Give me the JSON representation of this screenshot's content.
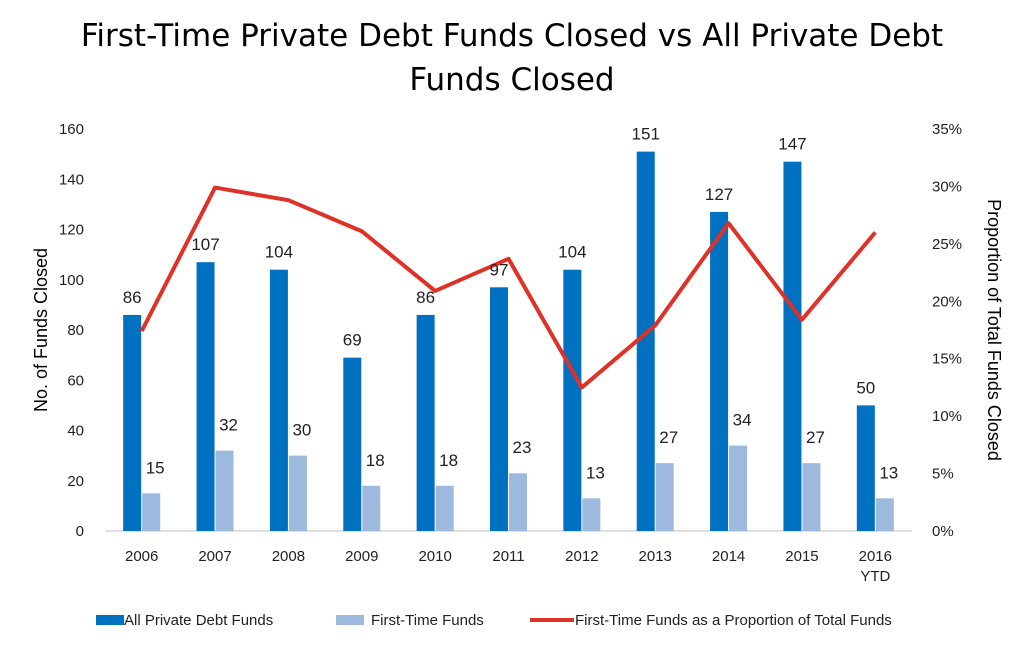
{
  "chart_data": {
    "type": "bar",
    "title": "First-Time Private Debt Funds Closed vs All Private Debt Funds Closed",
    "title_lines": [
      "First-Time Private Debt Funds Closed vs All Private Debt",
      "Funds Closed"
    ],
    "categories": [
      "2006",
      "2007",
      "2008",
      "2009",
      "2010",
      "2011",
      "2012",
      "2013",
      "2014",
      "2015",
      "2016 YTD"
    ],
    "category_lines": [
      [
        "2006"
      ],
      [
        "2007"
      ],
      [
        "2008"
      ],
      [
        "2009"
      ],
      [
        "2010"
      ],
      [
        "2011"
      ],
      [
        "2012"
      ],
      [
        "2013"
      ],
      [
        "2014"
      ],
      [
        "2015"
      ],
      [
        "2016",
        "YTD"
      ]
    ],
    "ylabel": "No. of Funds Closed",
    "y2label": "Proportion of Total Funds Closed",
    "ylim": [
      0,
      160
    ],
    "y_ticks": [
      0,
      20,
      40,
      60,
      80,
      100,
      120,
      140,
      160
    ],
    "y2lim": [
      0,
      35
    ],
    "y2_ticks": [
      "0%",
      "5%",
      "10%",
      "15%",
      "20%",
      "25%",
      "30%",
      "35%"
    ],
    "grid": false,
    "legend_position": "bottom",
    "series": [
      {
        "name": "All Private Debt Funds",
        "type": "bar",
        "axis": "left",
        "color": "#0070c0",
        "values": [
          86,
          107,
          104,
          69,
          86,
          97,
          104,
          151,
          127,
          147,
          50
        ]
      },
      {
        "name": "First-Time Funds",
        "type": "bar",
        "axis": "left",
        "color": "#9db9de",
        "values": [
          15,
          32,
          30,
          18,
          18,
          23,
          13,
          27,
          34,
          27,
          13
        ]
      },
      {
        "name": "First-Time Funds as a Proportion of Total Funds",
        "type": "line",
        "axis": "right",
        "unit": "%",
        "color": "#e03127",
        "values": [
          17.4,
          29.9,
          28.8,
          26.1,
          20.9,
          23.7,
          12.5,
          17.9,
          26.8,
          18.4,
          26.0
        ]
      }
    ]
  }
}
